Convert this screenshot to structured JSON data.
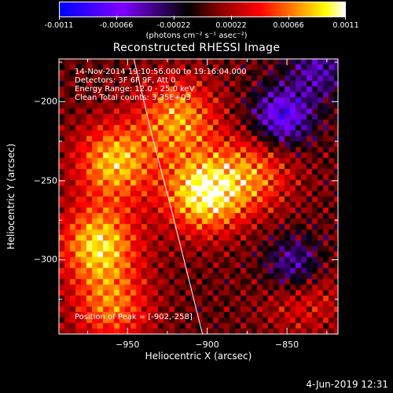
{
  "colorbar": {
    "ticks": [
      "-0.0011",
      "-0.00066",
      "-0.00022",
      "0.00022",
      "0.00066",
      "0.0011"
    ],
    "units": "(photons cm⁻² s⁻¹ asec⁻²)",
    "colors": [
      "#0000ff",
      "#7f00ff",
      "#000000",
      "#7f0000",
      "#ff0000",
      "#ff8000",
      "#ffff00",
      "#ffffff"
    ]
  },
  "title": "Reconstructed RHESSI Image",
  "annotations": {
    "line1": "14-Nov-2014 19:10:56.000 to 19:16:04.000",
    "line2": "Detectors: 3F 6F 9F, Att 0",
    "line3": "Energy Range: 12.0 - 25.0 keV",
    "line4": "Clean     Total counts: 3.35E+03",
    "peak": "Position of Peak = [-902,-258]"
  },
  "footer_date": "4-Jun-2019 12:31",
  "chart_data": {
    "type": "heatmap",
    "title": "Reconstructed RHESSI Image",
    "xlabel": "Heliocentric X (arcsec)",
    "ylabel": "Heliocentric Y (arcsec)",
    "xlim": [
      -993,
      -818
    ],
    "ylim": [
      -347,
      -173
    ],
    "xticks": [
      -950,
      -900,
      -850
    ],
    "yticks": [
      -200,
      -250,
      -300
    ],
    "xtick_labels": [
      "−950",
      "−900",
      "−850"
    ],
    "ytick_labels": [
      "−200",
      "−250",
      "−300"
    ],
    "peak": {
      "x": -902,
      "y": -258
    },
    "value_range": [
      -0.0011,
      0.0011
    ],
    "limb_curve": [
      [
        -946,
        -173
      ],
      [
        -935,
        -220
      ],
      [
        -922,
        -270
      ],
      [
        -903,
        -347
      ]
    ],
    "bright_sources": [
      {
        "x": -902,
        "y": -258,
        "intensity": 1.0
      },
      {
        "x": -968,
        "y": -290,
        "intensity": 0.85
      },
      {
        "x": -958,
        "y": -238,
        "intensity": 0.8
      },
      {
        "x": -918,
        "y": -210,
        "intensity": 0.7
      },
      {
        "x": -870,
        "y": -245,
        "intensity": 0.55
      },
      {
        "x": -960,
        "y": -330,
        "intensity": 0.6
      },
      {
        "x": -840,
        "y": -320,
        "intensity": 0.45
      }
    ],
    "dark_regions": [
      {
        "x": -853,
        "y": -210,
        "intensity": -0.8
      },
      {
        "x": -845,
        "y": -305,
        "intensity": -0.7
      },
      {
        "x": -830,
        "y": -180,
        "intensity": -0.5
      }
    ]
  }
}
